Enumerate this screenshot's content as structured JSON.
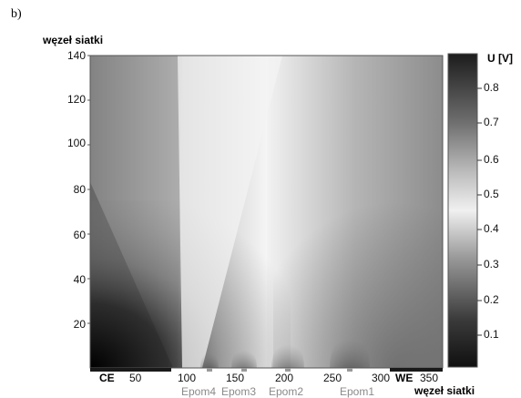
{
  "panel_label": "b)",
  "chart_data": {
    "type": "heatmap",
    "xlabel": "węzeł siatki",
    "ylabel": "węzeł siatki",
    "xlim": [
      0,
      360
    ],
    "ylim": [
      0,
      140
    ],
    "x_ticks": [
      "50",
      "100",
      "150",
      "200",
      "250",
      "300",
      "350"
    ],
    "y_ticks": [
      "20",
      "40",
      "60",
      "80",
      "100",
      "120",
      "140"
    ],
    "x_markers": [
      "CE",
      "WE"
    ],
    "electrodes": [
      "Epom4",
      "Epom3",
      "Epom2",
      "Epom1"
    ],
    "colorbar": {
      "label": "U [V]",
      "ticks": [
        "0.1",
        "0.2",
        "0.3",
        "0.4",
        "0.5",
        "0.6",
        "0.7",
        "0.8"
      ],
      "range": [
        0,
        0.9
      ],
      "colormap": "grayscale: dark at 0, light at 0.5, dark at 0.9"
    }
  }
}
